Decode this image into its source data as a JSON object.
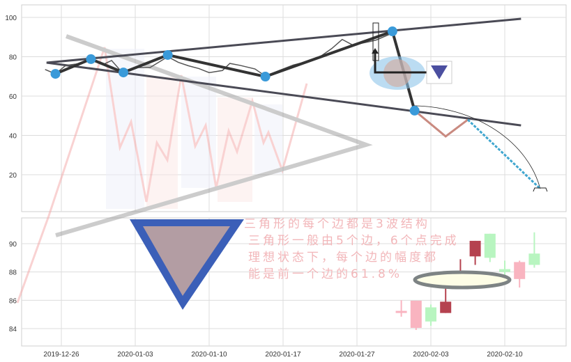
{
  "chart_data": [
    {
      "type": "line",
      "panel": "top",
      "ylim": [
        0,
        106
      ],
      "yticks": [
        20,
        40,
        60,
        80,
        100
      ],
      "grid": true,
      "price_line": {
        "x": [
          -1.1,
          -0.4,
          0.3,
          1.0,
          2.0,
          2.9,
          3.4,
          4.2,
          5.0,
          6.0,
          7.2,
          7.9,
          8.6,
          9.3,
          10.0,
          10.9,
          11.4,
          12.1,
          13.1,
          13.8,
          14.7,
          15.7,
          16.6,
          17.5,
          18.3,
          19.0,
          19.7,
          20.4,
          20.8,
          21.3,
          22.4
        ],
        "y": [
          73.5,
          71.3,
          75.6,
          76.3,
          78.1,
          76.3,
          78.1,
          71.3,
          74.5,
          74.5,
          80.0,
          77.2,
          75.4,
          74.0,
          71.9,
          73.0,
          76.6,
          75.6,
          73.8,
          70.2,
          72.9,
          75.8,
          77.5,
          80.0,
          84.2,
          88.8,
          86.0,
          87.0,
          87.6,
          88.5,
          92.0
        ],
        "color": "#555555"
      },
      "pivots": {
        "x": [
          -0.4,
          2.0,
          4.2,
          7.2,
          13.8,
          22.4,
          23.9
        ],
        "y": [
          71.3,
          78.8,
          72.0,
          80.9,
          69.9,
          92.9,
          52.6
        ],
        "color": "#3a9ad9"
      },
      "trendlines": [
        {
          "x": [
            -1.0,
            31.1
          ],
          "y": [
            77.0,
            99.3
          ]
        },
        {
          "x": [
            -1.0,
            31.1
          ],
          "y": [
            77.0,
            45.1
          ]
        }
      ],
      "projection": {
        "x": [
          23.9,
          26.0,
          27.5,
          32.4
        ],
        "y": [
          52.6,
          39.5,
          48.0,
          12.9
        ]
      }
    },
    {
      "type": "candlestick",
      "panel": "bottom",
      "ylim": [
        82.8,
        91.8
      ],
      "yticks": [
        84,
        86,
        88,
        90
      ],
      "grid": true,
      "x": [
        23,
        24,
        25,
        26,
        27,
        28,
        29,
        30,
        31,
        32
      ],
      "open": [
        85.2,
        85.97,
        84.5,
        85.1,
        87.5,
        89.1,
        89.0,
        88.0,
        88.7,
        88.5
      ],
      "close": [
        85.25,
        84.05,
        85.5,
        85.9,
        88.0,
        90.2,
        90.7,
        88.2,
        87.5,
        89.3
      ],
      "high": [
        86.0,
        85.97,
        85.7,
        87.1,
        88.9,
        90.2,
        90.7,
        88.8,
        88.8,
        90.8
      ],
      "low": [
        84.84,
        83.9,
        84.2,
        85.1,
        87.4,
        88.5,
        88.7,
        87.6,
        86.9,
        88.3
      ],
      "colors": [
        "#f9b4c0",
        "#f9b4c0",
        "#b8f5c0",
        "#b5424f",
        "#b5424f",
        "#b5424f",
        "#b8f5c0",
        "#b8f5c0",
        "#f9b4c0",
        "#b8f5c0"
      ]
    }
  ],
  "x_ticks": {
    "index": [
      0,
      5,
      10,
      15,
      20,
      25,
      30
    ],
    "labels": [
      "2019-12-26",
      "2020-01-03",
      "2020-01-10",
      "2020-01-17",
      "2020-01-27",
      "2020-02-03",
      "2020-02-10"
    ]
  },
  "notes": [
    "三角形的每个边都是3波结构",
    "三角形一般由5个边，6个点完成",
    "理想状态下，每个边的幅度都",
    "能是前一个边的61.8%"
  ]
}
